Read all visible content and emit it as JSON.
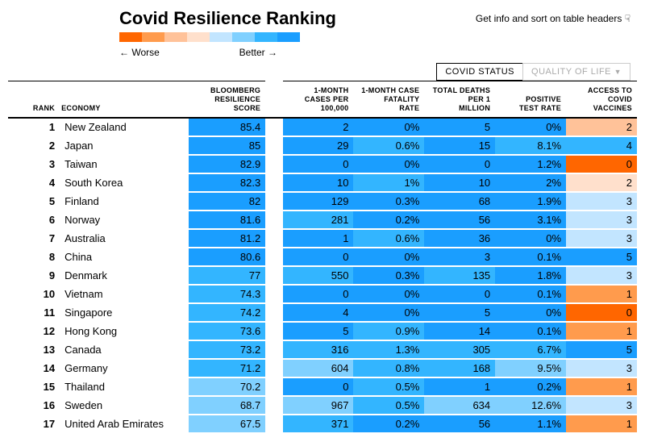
{
  "title": "Covid Resilience Ranking",
  "info_hint": "Get info and sort on table headers",
  "legend": {
    "worse_label": "← Worse",
    "better_label": "Better →",
    "colors": [
      "#ff6600",
      "#ff9b4d",
      "#ffc299",
      "#ffe0cc",
      "#c2e5ff",
      "#80d0ff",
      "#33b5ff",
      "#1a9eff"
    ]
  },
  "tabs": {
    "active": "COVID STATUS",
    "inactive": "QUALITY OF LIFE"
  },
  "columns": {
    "rank": "RANK",
    "economy": "ECONOMY",
    "score": "BLOOMBERG\nRESILIENCE\nSCORE",
    "cases": "1-MONTH\nCASES PER\n100,000",
    "fatality": "1-MONTH CASE\nFATALITY\nRATE",
    "deaths": "TOTAL DEATHS\nPER 1\nMILLION",
    "testrate": "POSITIVE\nTEST RATE",
    "vaccines": "ACCESS TO\nCOVID\nVACCINES"
  },
  "color_scale": {
    "c0": "#ff6600",
    "c1": "#ff9b4d",
    "c2": "#ffc299",
    "c3": "#ffe0cc",
    "c4": "#c2e5ff",
    "c5": "#80d0ff",
    "c6": "#33b5ff",
    "c7": "#1a9eff"
  },
  "rows": [
    {
      "rank": "1",
      "economy": "New Zealand",
      "score": "85.4",
      "score_c": "c7",
      "cases": "2",
      "cases_c": "c7",
      "fatality": "0%",
      "fatality_c": "c7",
      "deaths": "5",
      "deaths_c": "c7",
      "testrate": "0%",
      "testrate_c": "c7",
      "vaccines": "2",
      "vaccines_c": "c2"
    },
    {
      "rank": "2",
      "economy": "Japan",
      "score": "85",
      "score_c": "c7",
      "cases": "29",
      "cases_c": "c7",
      "fatality": "0.6%",
      "fatality_c": "c6",
      "deaths": "15",
      "deaths_c": "c7",
      "testrate": "8.1%",
      "testrate_c": "c6",
      "vaccines": "4",
      "vaccines_c": "c6"
    },
    {
      "rank": "3",
      "economy": "Taiwan",
      "score": "82.9",
      "score_c": "c7",
      "cases": "0",
      "cases_c": "c7",
      "fatality": "0%",
      "fatality_c": "c7",
      "deaths": "0",
      "deaths_c": "c7",
      "testrate": "1.2%",
      "testrate_c": "c7",
      "vaccines": "0",
      "vaccines_c": "c0"
    },
    {
      "rank": "4",
      "economy": "South Korea",
      "score": "82.3",
      "score_c": "c7",
      "cases": "10",
      "cases_c": "c7",
      "fatality": "1%",
      "fatality_c": "c6",
      "deaths": "10",
      "deaths_c": "c7",
      "testrate": "2%",
      "testrate_c": "c7",
      "vaccines": "2",
      "vaccines_c": "c3"
    },
    {
      "rank": "5",
      "economy": "Finland",
      "score": "82",
      "score_c": "c7",
      "cases": "129",
      "cases_c": "c7",
      "fatality": "0.3%",
      "fatality_c": "c7",
      "deaths": "68",
      "deaths_c": "c7",
      "testrate": "1.9%",
      "testrate_c": "c7",
      "vaccines": "3",
      "vaccines_c": "c4"
    },
    {
      "rank": "6",
      "economy": "Norway",
      "score": "81.6",
      "score_c": "c7",
      "cases": "281",
      "cases_c": "c6",
      "fatality": "0.2%",
      "fatality_c": "c7",
      "deaths": "56",
      "deaths_c": "c7",
      "testrate": "3.1%",
      "testrate_c": "c7",
      "vaccines": "3",
      "vaccines_c": "c4"
    },
    {
      "rank": "7",
      "economy": "Australia",
      "score": "81.2",
      "score_c": "c7",
      "cases": "1",
      "cases_c": "c7",
      "fatality": "0.6%",
      "fatality_c": "c6",
      "deaths": "36",
      "deaths_c": "c7",
      "testrate": "0%",
      "testrate_c": "c7",
      "vaccines": "3",
      "vaccines_c": "c4"
    },
    {
      "rank": "8",
      "economy": "China",
      "score": "80.6",
      "score_c": "c7",
      "cases": "0",
      "cases_c": "c7",
      "fatality": "0%",
      "fatality_c": "c7",
      "deaths": "3",
      "deaths_c": "c7",
      "testrate": "0.1%",
      "testrate_c": "c7",
      "vaccines": "5",
      "vaccines_c": "c7"
    },
    {
      "rank": "9",
      "economy": "Denmark",
      "score": "77",
      "score_c": "c6",
      "cases": "550",
      "cases_c": "c6",
      "fatality": "0.3%",
      "fatality_c": "c7",
      "deaths": "135",
      "deaths_c": "c6",
      "testrate": "1.8%",
      "testrate_c": "c7",
      "vaccines": "3",
      "vaccines_c": "c4"
    },
    {
      "rank": "10",
      "economy": "Vietnam",
      "score": "74.3",
      "score_c": "c6",
      "cases": "0",
      "cases_c": "c7",
      "fatality": "0%",
      "fatality_c": "c7",
      "deaths": "0",
      "deaths_c": "c7",
      "testrate": "0.1%",
      "testrate_c": "c7",
      "vaccines": "1",
      "vaccines_c": "c1"
    },
    {
      "rank": "11",
      "economy": "Singapore",
      "score": "74.2",
      "score_c": "c6",
      "cases": "4",
      "cases_c": "c7",
      "fatality": "0%",
      "fatality_c": "c7",
      "deaths": "5",
      "deaths_c": "c7",
      "testrate": "0%",
      "testrate_c": "c7",
      "vaccines": "0",
      "vaccines_c": "c0"
    },
    {
      "rank": "12",
      "economy": "Hong Kong",
      "score": "73.6",
      "score_c": "c6",
      "cases": "5",
      "cases_c": "c7",
      "fatality": "0.9%",
      "fatality_c": "c6",
      "deaths": "14",
      "deaths_c": "c7",
      "testrate": "0.1%",
      "testrate_c": "c7",
      "vaccines": "1",
      "vaccines_c": "c1"
    },
    {
      "rank": "13",
      "economy": "Canada",
      "score": "73.2",
      "score_c": "c6",
      "cases": "316",
      "cases_c": "c6",
      "fatality": "1.3%",
      "fatality_c": "c6",
      "deaths": "305",
      "deaths_c": "c6",
      "testrate": "6.7%",
      "testrate_c": "c6",
      "vaccines": "5",
      "vaccines_c": "c7"
    },
    {
      "rank": "14",
      "economy": "Germany",
      "score": "71.2",
      "score_c": "c6",
      "cases": "604",
      "cases_c": "c5",
      "fatality": "0.8%",
      "fatality_c": "c6",
      "deaths": "168",
      "deaths_c": "c6",
      "testrate": "9.5%",
      "testrate_c": "c5",
      "vaccines": "3",
      "vaccines_c": "c4"
    },
    {
      "rank": "15",
      "economy": "Thailand",
      "score": "70.2",
      "score_c": "c5",
      "cases": "0",
      "cases_c": "c7",
      "fatality": "0.5%",
      "fatality_c": "c6",
      "deaths": "1",
      "deaths_c": "c7",
      "testrate": "0.2%",
      "testrate_c": "c7",
      "vaccines": "1",
      "vaccines_c": "c1"
    },
    {
      "rank": "16",
      "economy": "Sweden",
      "score": "68.7",
      "score_c": "c5",
      "cases": "967",
      "cases_c": "c5",
      "fatality": "0.5%",
      "fatality_c": "c6",
      "deaths": "634",
      "deaths_c": "c5",
      "testrate": "12.6%",
      "testrate_c": "c5",
      "vaccines": "3",
      "vaccines_c": "c4"
    },
    {
      "rank": "17",
      "economy": "United Arab Emirates",
      "score": "67.5",
      "score_c": "c5",
      "cases": "371",
      "cases_c": "c6",
      "fatality": "0.2%",
      "fatality_c": "c7",
      "deaths": "56",
      "deaths_c": "c7",
      "testrate": "1.1%",
      "testrate_c": "c7",
      "vaccines": "1",
      "vaccines_c": "c1"
    }
  ]
}
